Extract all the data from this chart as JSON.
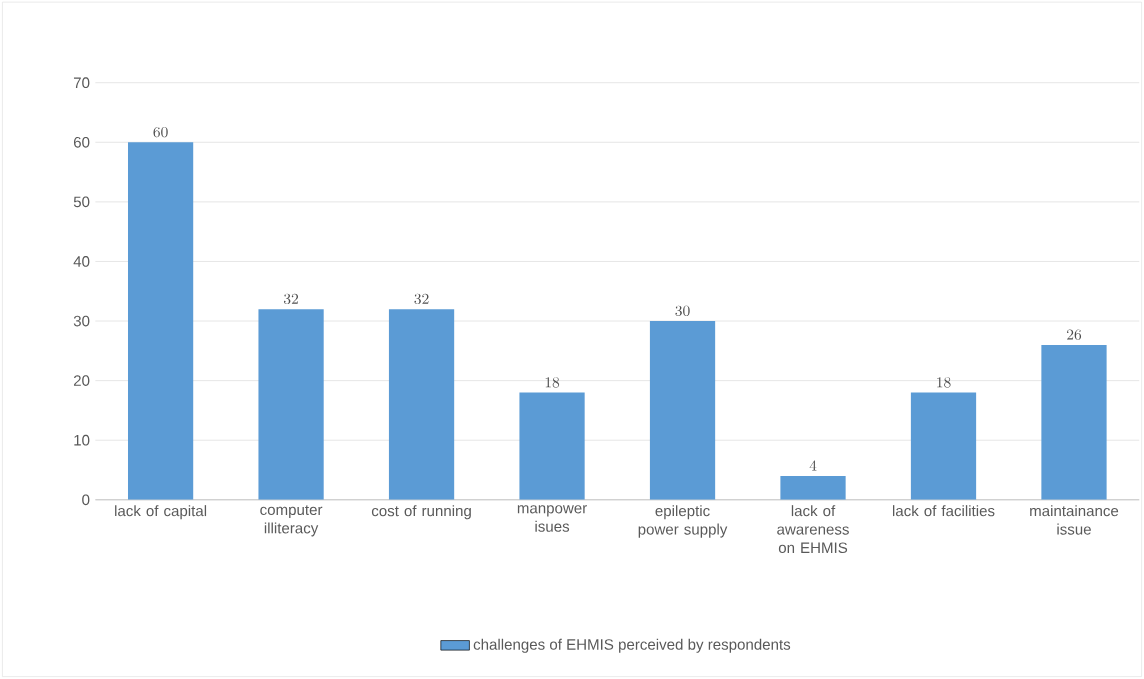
{
  "chart_data": {
    "type": "bar",
    "categories": [
      "lack of capital",
      "computer illiteracy",
      "cost of running",
      "manpower isues",
      "epileptic power supply",
      "lack of awareness on EHMIS",
      "lack of facilities",
      "maintainance issue"
    ],
    "series": [
      {
        "name": "challenges of EHMIS perceived by respondents",
        "color": "#5b9bd5",
        "values": [
          60,
          32,
          32,
          18,
          30,
          4,
          18,
          26
        ]
      }
    ],
    "ylim": [
      0,
      70
    ],
    "yticks": [
      0,
      10,
      20,
      30,
      40,
      50,
      60,
      70
    ],
    "grid": "y",
    "legend": "bottom",
    "data_labels": true
  }
}
